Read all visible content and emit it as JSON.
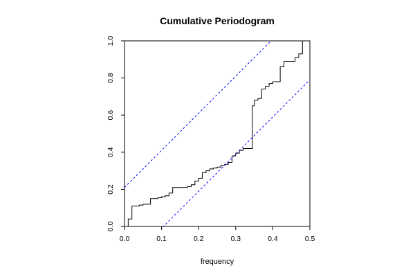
{
  "chart_data": {
    "type": "line",
    "title": "Cumulative Periodogram",
    "xlabel": "frequency",
    "ylabel": "",
    "xlim": [
      0.0,
      0.5
    ],
    "ylim": [
      0.0,
      1.0
    ],
    "xticks": [
      "0.0",
      "0.1",
      "0.2",
      "0.3",
      "0.4",
      "0.5"
    ],
    "yticks": [
      "0.0",
      "0.2",
      "0.4",
      "0.6",
      "0.8",
      "1.0"
    ],
    "grid": false,
    "series": [
      {
        "style": "step",
        "color": "#000000",
        "x": [
          0.0,
          0.01,
          0.02,
          0.03,
          0.04,
          0.05,
          0.06,
          0.07,
          0.08,
          0.09,
          0.1,
          0.11,
          0.12,
          0.13,
          0.14,
          0.15,
          0.16,
          0.17,
          0.18,
          0.19,
          0.2,
          0.21,
          0.22,
          0.23,
          0.24,
          0.25,
          0.26,
          0.27,
          0.28,
          0.29,
          0.3,
          0.31,
          0.32,
          0.33,
          0.34,
          0.345,
          0.35,
          0.36,
          0.37,
          0.38,
          0.39,
          0.4,
          0.41,
          0.42,
          0.43,
          0.44,
          0.45,
          0.46,
          0.47,
          0.48,
          0.49,
          0.5
        ],
        "y": [
          0.0,
          0.04,
          0.11,
          0.11,
          0.115,
          0.12,
          0.12,
          0.15,
          0.15,
          0.155,
          0.16,
          0.165,
          0.18,
          0.21,
          0.21,
          0.21,
          0.21,
          0.215,
          0.225,
          0.245,
          0.26,
          0.29,
          0.3,
          0.31,
          0.315,
          0.32,
          0.33,
          0.335,
          0.345,
          0.38,
          0.395,
          0.41,
          0.42,
          0.42,
          0.42,
          0.65,
          0.68,
          0.69,
          0.74,
          0.755,
          0.77,
          0.78,
          0.78,
          0.86,
          0.89,
          0.89,
          0.89,
          0.91,
          0.93,
          1.0,
          1.0,
          1.0
        ]
      },
      {
        "style": "dashed",
        "color": "#0000ff",
        "x": [
          0.0,
          0.5
        ],
        "y": [
          0.21,
          1.21
        ]
      },
      {
        "style": "dashed",
        "color": "#0000ff",
        "x": [
          0.0,
          0.5
        ],
        "y": [
          -0.21,
          0.79
        ]
      }
    ]
  }
}
